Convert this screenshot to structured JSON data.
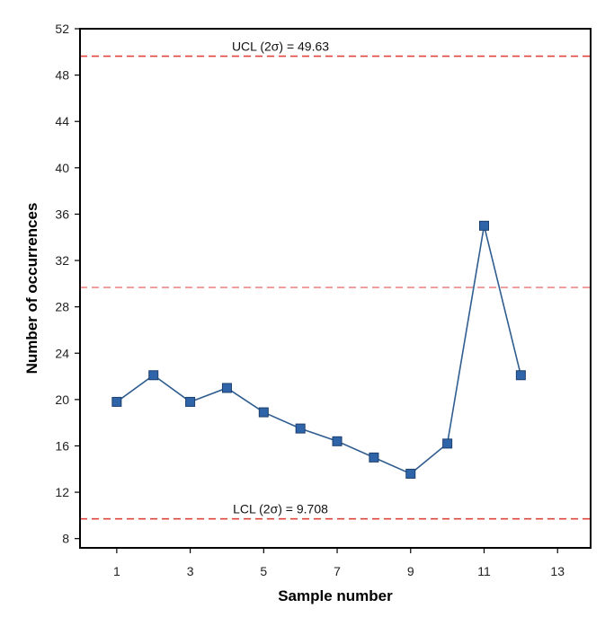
{
  "chart_data": {
    "type": "line",
    "title": "",
    "xlabel": "Sample number",
    "ylabel": "Number of occurrences",
    "xlim": [
      0,
      13.9
    ],
    "ylim": [
      7.2,
      52
    ],
    "x_ticks": [
      1,
      3,
      5,
      7,
      9,
      11,
      13
    ],
    "y_ticks": [
      8,
      12,
      16,
      20,
      24,
      28,
      32,
      36,
      40,
      44,
      48,
      52
    ],
    "grid": false,
    "series": [
      {
        "x": [
          1,
          2,
          3,
          4,
          5,
          6,
          7,
          8,
          9,
          10,
          11,
          12
        ],
        "values": [
          19.8,
          22.1,
          19.8,
          21.0,
          18.9,
          17.5,
          16.4,
          15.0,
          13.6,
          16.2,
          35.0,
          22.1
        ],
        "color": "#2f5d8f",
        "marker_color": "#2f64a8",
        "marker": "square"
      }
    ],
    "reference_lines": [
      {
        "label": "UCL (2σ) = 49.63",
        "value": 49.63,
        "color": "#e0463c"
      },
      {
        "label": "",
        "value": 29.67,
        "color": "#ee8a8a"
      },
      {
        "label": "LCL (2σ) = 9.708",
        "value": 9.708,
        "color": "#e0463c"
      }
    ]
  }
}
